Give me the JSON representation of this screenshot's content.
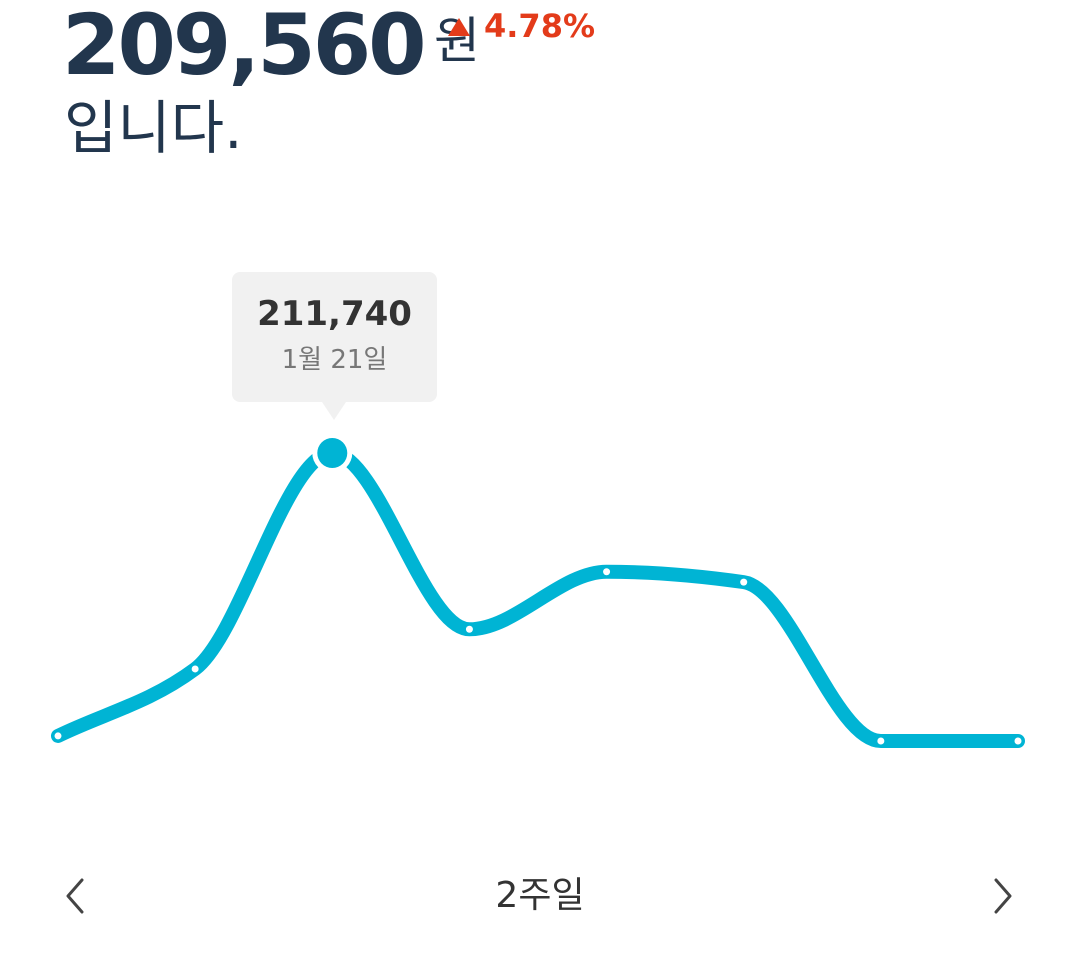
{
  "summary": {
    "value": "209,560",
    "unit": "원",
    "change": "4.78%",
    "change_direction": "up",
    "suffix": "입니다."
  },
  "tooltip": {
    "value": "211,740",
    "date": "1월 21일"
  },
  "controls": {
    "period_label": "2주일",
    "prev_icon": "chevron-left-icon",
    "next_icon": "chevron-right-icon"
  },
  "colors": {
    "primary_text": "#22364d",
    "line": "#00b4d4",
    "change_up": "#e33b1a"
  },
  "chart_data": {
    "type": "line",
    "series": [
      {
        "values": [
          200040,
          202810,
          211740,
          204450,
          206830,
          206400,
          199830,
          199830
        ]
      }
    ],
    "highlight_index": 2
  }
}
